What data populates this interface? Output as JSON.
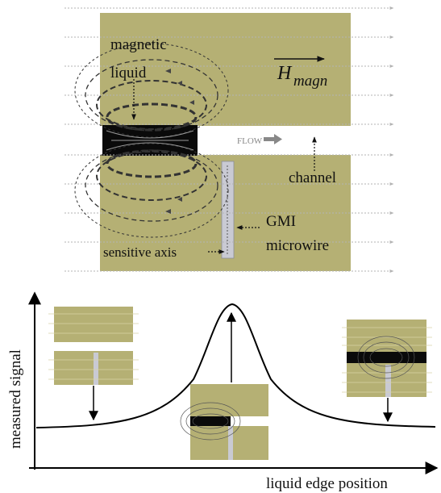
{
  "labels": {
    "magnetic_liquid_1": "magnetic",
    "magnetic_liquid_2": "liquid",
    "field_symbol": "H",
    "field_subscript": "magn",
    "flow": "FLOW",
    "channel": "channel",
    "gmi_1": "GMI",
    "gmi_2": "microwire",
    "sensitive_axis": "sensitive axis",
    "y_axis": "measured signal",
    "x_axis": "liquid edge position"
  },
  "colors": {
    "olive": "#b5b074",
    "liquid": "#0a0a0a",
    "wire": "#c9cad3",
    "field_line": "#a8a8a8",
    "curve": "#000000"
  }
}
